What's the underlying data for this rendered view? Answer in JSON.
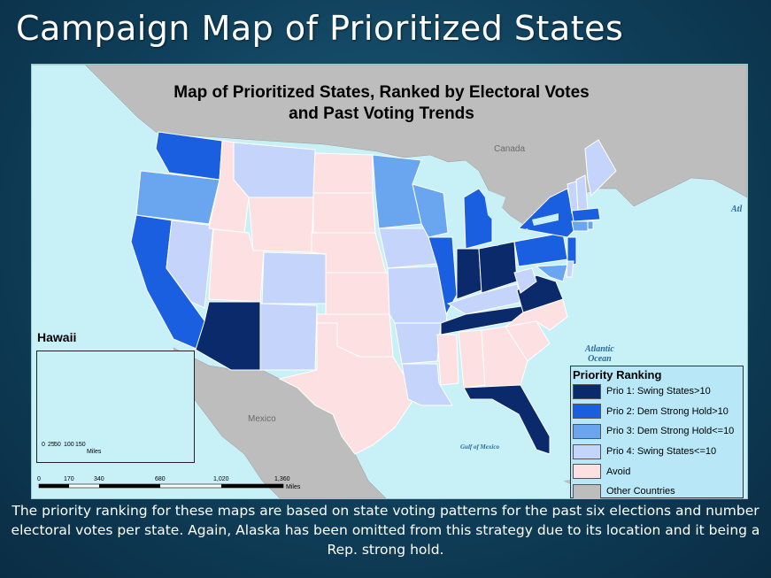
{
  "slide": {
    "title": "Campaign Map of Prioritized States",
    "caption": "The priority ranking for these maps are based on state voting patterns for the past six elections and number electoral votes per state. Again, Alaska has been omitted from this strategy due to its location and it being a Rep. strong hold."
  },
  "map": {
    "heading_line1": "Map of Prioritized States, Ranked by Electoral Votes",
    "heading_line2": "and Past Voting Trends",
    "labels": {
      "canada": "Canada",
      "mexico": "Mexico",
      "atlantic": "Atlantic",
      "ocean": "Ocean",
      "atl_partial": "Atl",
      "gulf": "Gulf of Mexico"
    },
    "hawaii_title": "Hawaii",
    "legend": {
      "title": "Priority Ranking",
      "items": [
        {
          "label": "Prio 1: Swing States>10",
          "color": "#0a2a6b"
        },
        {
          "label": "Prio 2: Dem Strong Hold>10",
          "color": "#1a5fe0"
        },
        {
          "label": "Prio 3: Dem Strong Hold<=10",
          "color": "#6aa6f0"
        },
        {
          "label": "Prio 4: Swing States<=10",
          "color": "#c5d4fa"
        },
        {
          "label": "Avoid",
          "color": "#fde0e2"
        },
        {
          "label": "Other Countries",
          "color": "#bdbdbd"
        }
      ]
    },
    "scale_main": {
      "ticks": [
        "0",
        "170",
        "340",
        "680",
        "1,020",
        "1,360"
      ],
      "unit": "Miles"
    },
    "scale_hawaii": {
      "ticks": [
        "0",
        "25",
        "50",
        "100",
        "150"
      ],
      "unit": "Miles"
    },
    "colors": {
      "ocean": "#c8f0f7",
      "other_countries": "#bdbdbd",
      "state_border": "#ffffff"
    }
  }
}
